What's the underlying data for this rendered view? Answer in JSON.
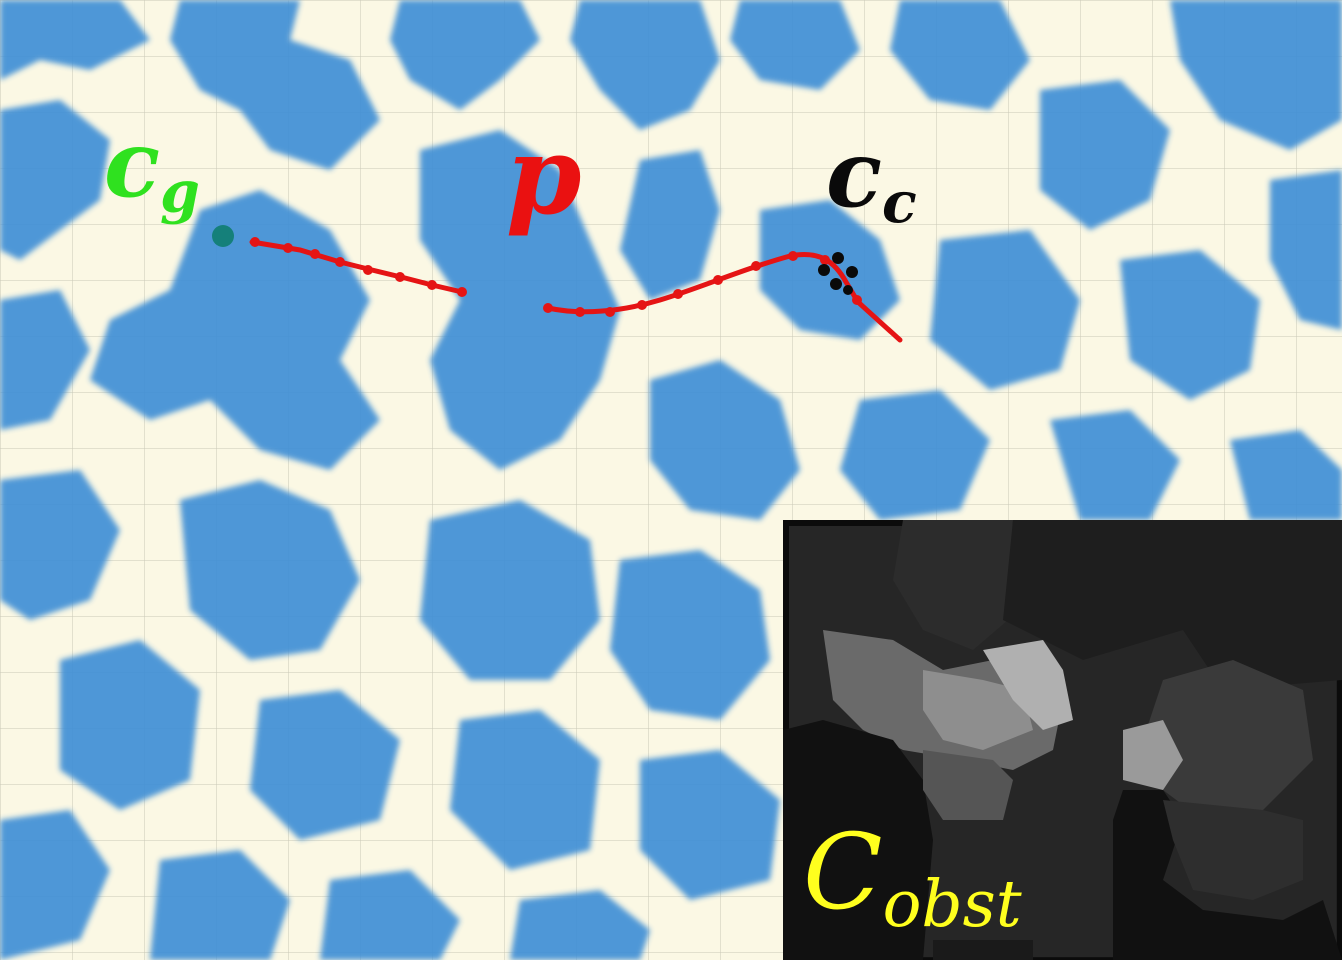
{
  "labels": {
    "goal_symbol": "c",
    "goal_subscript": "g",
    "path_symbol": "p",
    "current_symbol": "c",
    "current_subscript": "c",
    "cost_symbol": "C",
    "cost_subscript": "obst"
  },
  "colors": {
    "background": "#fbf8e4",
    "obstacle": "#3f8fd6",
    "path": "#e51414",
    "goal_marker": "#15807a",
    "goal_label": "#2fe11f",
    "path_label": "#ea1111",
    "current_label": "#0a0a0a",
    "cost_label": "#ffff1e",
    "inset_background": "#0b0b0b"
  },
  "icons": {
    "goal": "teal-sphere-icon",
    "current": "drone-icon"
  }
}
